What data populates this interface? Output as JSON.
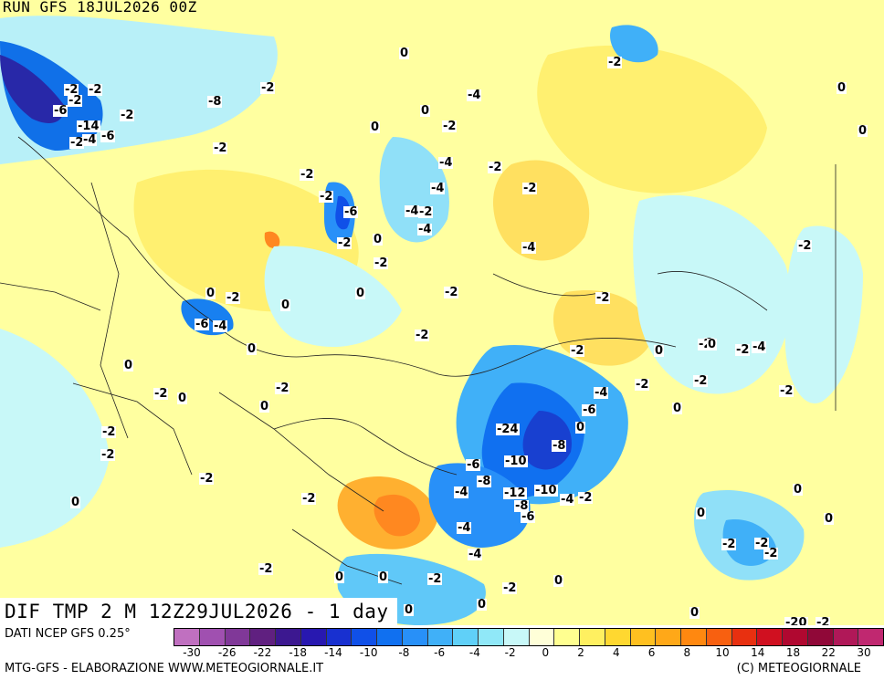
{
  "header": {
    "run_title": "RUN GFS 18JUL2026 00Z"
  },
  "field_title": "DIF TMP 2 M 12Z29JUL2026 - 1 day",
  "footer": {
    "source": "DATI NCEP GFS 0.25°",
    "credit": "MTG-GFS - ELABORAZIONE WWW.METEOGIORNALE.IT",
    "copyright": "(C) METEOGIORNALE"
  },
  "legend": {
    "tick_labels": [
      "-30",
      "-26",
      "-22",
      "-18",
      "-14",
      "-10",
      "-8",
      "-6",
      "-4",
      "-2",
      "0",
      "2",
      "4",
      "6",
      "8",
      "10",
      "14",
      "18",
      "22",
      "30"
    ],
    "colors": [
      "#c070c0",
      "#a050b0",
      "#803898",
      "#602080",
      "#3c1890",
      "#2818b0",
      "#1830d0",
      "#1050e8",
      "#1070f0",
      "#2890f8",
      "#40b0f8",
      "#60d0f8",
      "#90e8f8",
      "#c8f8f8",
      "#ffffd8",
      "#ffff90",
      "#fff060",
      "#ffd830",
      "#ffc020",
      "#ffa818",
      "#ff8810",
      "#f86010",
      "#e83010",
      "#d01020",
      "#b00830",
      "#900838",
      "#b01858",
      "#c02870"
    ]
  },
  "contour_labels": [
    "-2",
    "-2",
    "-2",
    "-6",
    "-14",
    "-2",
    "-2",
    "-4",
    "-6",
    "-8",
    "-2",
    "-2",
    "-2",
    "-2",
    "0",
    "0",
    "0",
    "-2",
    "-4",
    "-2",
    "-4",
    "-4",
    "-2",
    "-2",
    "-4",
    "-2",
    "-6",
    "-4",
    "-4",
    "-2",
    "0",
    "-2",
    "0",
    "-2",
    "0",
    "-2",
    "0",
    "-6",
    "-4",
    "0",
    "-2",
    "0",
    "0",
    "-2",
    "0",
    "-2",
    "-2",
    "-2",
    "-2",
    "0",
    "-2",
    "0",
    "0",
    "0",
    "-2",
    "0",
    "-4",
    "-2",
    "-6",
    "0",
    "-24",
    "-8",
    "-6",
    "-10",
    "-8",
    "-4",
    "-12",
    "-10",
    "-4",
    "-2",
    "-8",
    "-6",
    "-2",
    "0",
    "-2",
    "-2",
    "-4",
    "-2",
    "-2",
    "-2",
    "0",
    "0",
    "-2",
    "-4",
    "-2",
    "0",
    "0",
    "0",
    "-2",
    "0",
    "-2",
    "0",
    "0",
    "0",
    "-20",
    "-2",
    "-2",
    "0",
    "-4",
    "-2"
  ]
}
